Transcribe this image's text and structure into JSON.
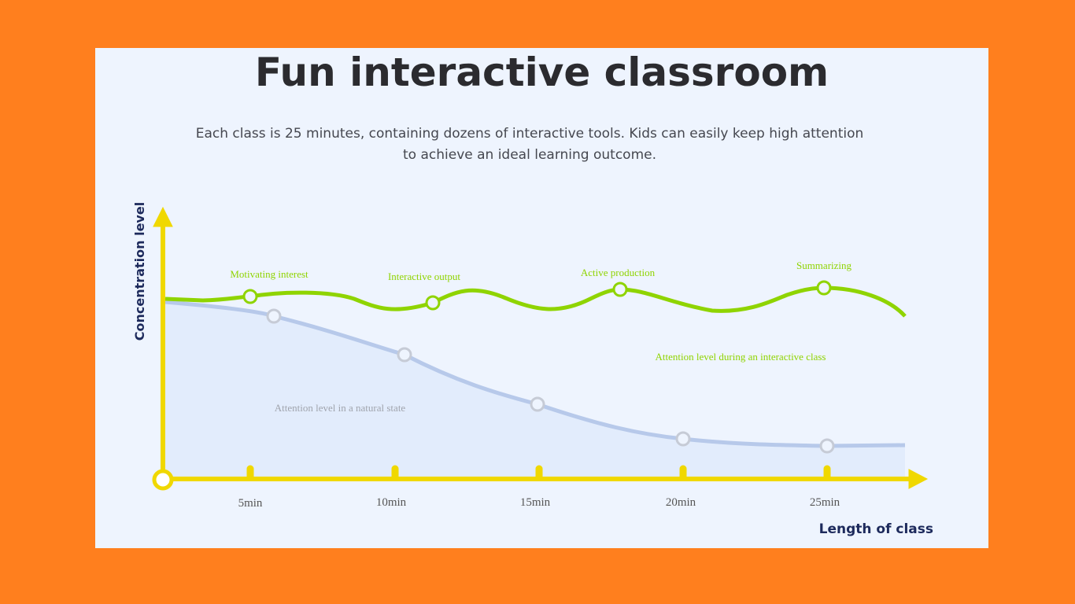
{
  "header": {
    "title": "Fun interactive classroom",
    "subtitle": "Each class is 25 minutes, containing dozens of interactive tools. Kids can easily keep high attention to achieve an ideal learning outcome."
  },
  "chart": {
    "y_axis_label": "Concentration level",
    "x_axis_label": "Length of class",
    "x_ticks": [
      "5min",
      "10min",
      "15min",
      "20min",
      "25min"
    ],
    "stages": [
      "Motivating interest",
      "Interactive output",
      "Active production",
      "Summarizing"
    ],
    "series_labels": {
      "interactive": "Attention level during an interactive class",
      "natural": "Attention level in a natural state"
    }
  }
}
